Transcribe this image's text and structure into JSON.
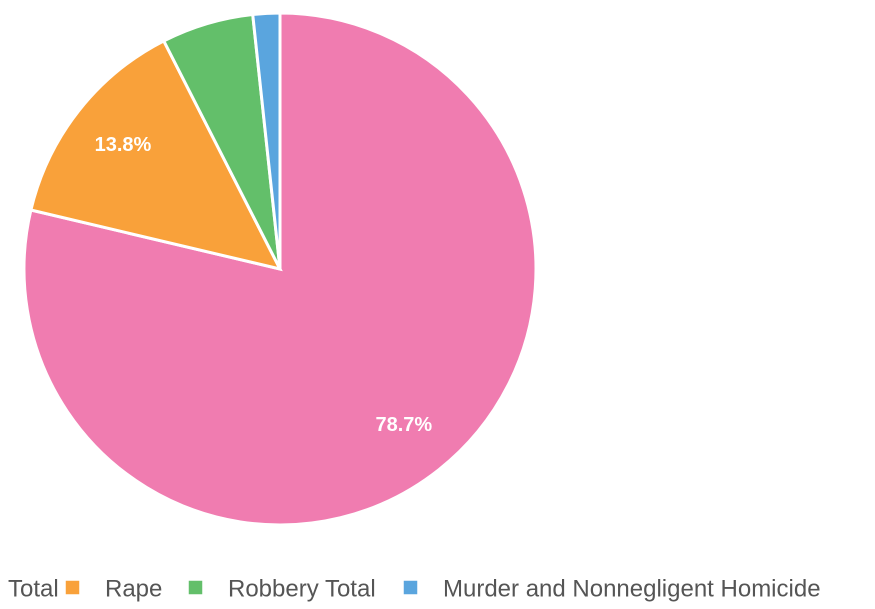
{
  "chart_data": {
    "type": "pie",
    "categories": [
      "Total",
      "Rape",
      "Robbery Total",
      "Murder and Nonnegligent Homicide"
    ],
    "values": [
      78.7,
      13.8,
      5.8,
      1.7
    ],
    "value_labels": [
      "78.7%",
      "13.8%",
      null,
      null
    ],
    "colors": [
      "#f07cb0",
      "#f9a13a",
      "#63bf6a",
      "#5aa5de"
    ]
  }
}
